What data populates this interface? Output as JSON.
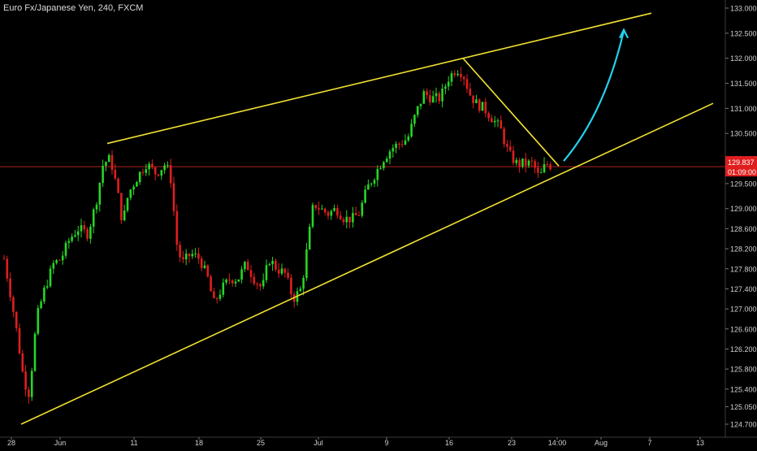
{
  "header": {
    "symbol_title": "Euro Fx/Japanese Yen, 240, FXCM"
  },
  "colors": {
    "background": "#000000",
    "up_candle": "#26d626",
    "down_candle": "#e01e1e",
    "trendline": "#f0e130",
    "arrow": "#22d3ee",
    "price_line": "#b02020",
    "axis_text": "#cfcfcf",
    "price_tag_bg": "#e01e1e"
  },
  "chart_data": {
    "type": "candlestick",
    "title": "Euro Fx/Japanese Yen, 240, FXCM",
    "x_ticks": [
      "28",
      "Jun",
      "11",
      "18",
      "25",
      "Jul",
      "9",
      "16",
      "23",
      "14:00",
      "Aug",
      "7",
      "13"
    ],
    "y_ticks": [
      "133.000",
      "132.500",
      "132.000",
      "131.500",
      "131.000",
      "130.500",
      "130.000",
      "129.500",
      "129.000",
      "128.600",
      "128.200",
      "127.800",
      "127.400",
      "127.000",
      "126.600",
      "126.200",
      "125.800",
      "125.400",
      "125.050",
      "124.700"
    ],
    "ylim": [
      124.6,
      133.1
    ],
    "grid": false,
    "last_price": "129.837",
    "countdown": "01:09:00",
    "series_waypoints": [
      {
        "x": 5,
        "y": 128.0
      },
      {
        "x": 14,
        "y": 127.2
      },
      {
        "x": 22,
        "y": 126.4
      },
      {
        "x": 29,
        "y": 125.6
      },
      {
        "x": 36,
        "y": 125.3
      },
      {
        "x": 45,
        "y": 126.8
      },
      {
        "x": 55,
        "y": 127.4
      },
      {
        "x": 66,
        "y": 127.9
      },
      {
        "x": 75,
        "y": 128.0
      },
      {
        "x": 86,
        "y": 128.4
      },
      {
        "x": 96,
        "y": 128.6
      },
      {
        "x": 108,
        "y": 128.5
      },
      {
        "x": 118,
        "y": 129.1
      },
      {
        "x": 127,
        "y": 129.9
      },
      {
        "x": 136,
        "y": 130.0
      },
      {
        "x": 144,
        "y": 129.4
      },
      {
        "x": 151,
        "y": 128.7
      },
      {
        "x": 158,
        "y": 129.3
      },
      {
        "x": 168,
        "y": 129.6
      },
      {
        "x": 180,
        "y": 129.9
      },
      {
        "x": 192,
        "y": 129.7
      },
      {
        "x": 204,
        "y": 129.9
      },
      {
        "x": 212,
        "y": 129.5
      },
      {
        "x": 216,
        "y": 128.4
      },
      {
        "x": 224,
        "y": 127.9
      },
      {
        "x": 235,
        "y": 128.1
      },
      {
        "x": 246,
        "y": 128.0
      },
      {
        "x": 256,
        "y": 127.6
      },
      {
        "x": 263,
        "y": 127.1
      },
      {
        "x": 273,
        "y": 127.4
      },
      {
        "x": 283,
        "y": 127.6
      },
      {
        "x": 293,
        "y": 127.6
      },
      {
        "x": 303,
        "y": 127.9
      },
      {
        "x": 313,
        "y": 127.6
      },
      {
        "x": 323,
        "y": 127.4
      },
      {
        "x": 331,
        "y": 128.0
      },
      {
        "x": 341,
        "y": 127.8
      },
      {
        "x": 351,
        "y": 127.7
      },
      {
        "x": 361,
        "y": 127.2
      },
      {
        "x": 371,
        "y": 127.4
      },
      {
        "x": 378,
        "y": 128.2
      },
      {
        "x": 386,
        "y": 129.1
      },
      {
        "x": 394,
        "y": 129.0
      },
      {
        "x": 404,
        "y": 128.9
      },
      {
        "x": 414,
        "y": 129.0
      },
      {
        "x": 424,
        "y": 128.8
      },
      {
        "x": 434,
        "y": 128.8
      },
      {
        "x": 442,
        "y": 128.9
      },
      {
        "x": 452,
        "y": 129.4
      },
      {
        "x": 462,
        "y": 129.7
      },
      {
        "x": 472,
        "y": 130.0
      },
      {
        "x": 482,
        "y": 130.2
      },
      {
        "x": 492,
        "y": 130.3
      },
      {
        "x": 502,
        "y": 130.4
      },
      {
        "x": 512,
        "y": 130.9
      },
      {
        "x": 522,
        "y": 131.3
      },
      {
        "x": 532,
        "y": 131.2
      },
      {
        "x": 542,
        "y": 131.2
      },
      {
        "x": 552,
        "y": 131.6
      },
      {
        "x": 562,
        "y": 131.8
      },
      {
        "x": 570,
        "y": 131.7
      },
      {
        "x": 578,
        "y": 131.3
      },
      {
        "x": 586,
        "y": 131.1
      },
      {
        "x": 596,
        "y": 131.0
      },
      {
        "x": 606,
        "y": 130.8
      },
      {
        "x": 616,
        "y": 130.6
      },
      {
        "x": 626,
        "y": 130.1
      },
      {
        "x": 636,
        "y": 129.9
      },
      {
        "x": 646,
        "y": 129.9
      },
      {
        "x": 656,
        "y": 129.9
      },
      {
        "x": 664,
        "y": 129.6
      },
      {
        "x": 672,
        "y": 129.9
      },
      {
        "x": 680,
        "y": 129.85
      }
    ],
    "trendlines": [
      {
        "name": "upper-resistance",
        "from": {
          "x": 132,
          "y": 130.3
        },
        "to": {
          "x": 802,
          "y": 132.9
        }
      },
      {
        "name": "lower-support",
        "from": {
          "x": 26,
          "y": 124.7
        },
        "to": {
          "x": 878,
          "y": 131.1
        }
      },
      {
        "name": "pullback-line",
        "from": {
          "x": 570,
          "y": 132.0
        },
        "to": {
          "x": 688,
          "y": 129.85
        }
      }
    ],
    "arrow_path": [
      {
        "x": 694,
        "y": 129.95
      },
      {
        "x": 744,
        "y": 130.9
      },
      {
        "x": 768,
        "y": 132.55
      }
    ]
  }
}
